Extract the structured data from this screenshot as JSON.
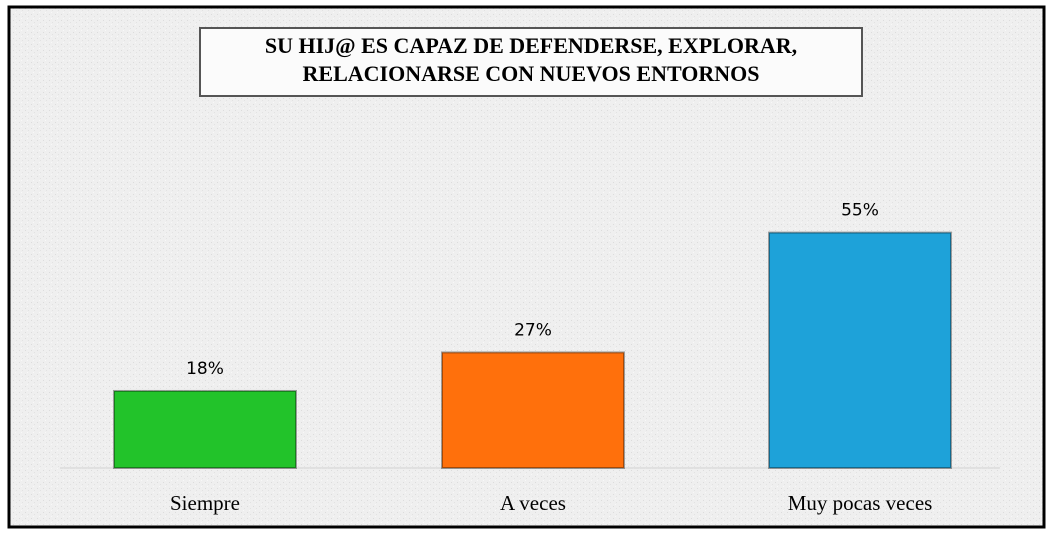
{
  "chart_data": {
    "type": "bar",
    "title": [
      "SU HIJ@ ES CAPAZ DE DEFENDERSE, EXPLORAR,",
      "RELACIONARSE CON NUEVOS ENTORNOS"
    ],
    "categories": [
      "Siempre",
      "A veces",
      "Muy pocas veces"
    ],
    "values": [
      18,
      27,
      55
    ],
    "value_labels": [
      "18%",
      "27%",
      "55%"
    ],
    "colors": [
      "#22c32a",
      "#ff700c",
      "#1ea2d9"
    ]
  }
}
